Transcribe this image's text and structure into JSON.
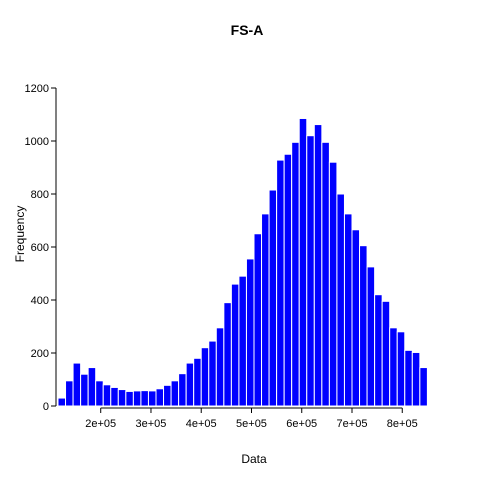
{
  "chart_data": {
    "type": "bar",
    "title": "FS-A",
    "xlabel": "Data",
    "ylabel": "Frequency",
    "xlim": [
      115000,
      895000
    ],
    "ylim": [
      0,
      1200
    ],
    "bin_width": 15000,
    "bin_start": 115000,
    "x_ticks": [
      {
        "value": 200000,
        "label": "2e+05"
      },
      {
        "value": 300000,
        "label": "3e+05"
      },
      {
        "value": 400000,
        "label": "4e+05"
      },
      {
        "value": 500000,
        "label": "5e+05"
      },
      {
        "value": 600000,
        "label": "6e+05"
      },
      {
        "value": 700000,
        "label": "7e+05"
      },
      {
        "value": 800000,
        "label": "8e+05"
      }
    ],
    "y_ticks": [
      {
        "value": 0,
        "label": "0"
      },
      {
        "value": 200,
        "label": "200"
      },
      {
        "value": 400,
        "label": "400"
      },
      {
        "value": 600,
        "label": "600"
      },
      {
        "value": 800,
        "label": "800"
      },
      {
        "value": 1000,
        "label": "1000"
      },
      {
        "value": 1200,
        "label": "1200"
      }
    ],
    "values": [
      30,
      95,
      162,
      120,
      145,
      95,
      80,
      70,
      62,
      55,
      57,
      58,
      57,
      65,
      78,
      95,
      122,
      162,
      180,
      220,
      245,
      295,
      390,
      460,
      490,
      555,
      650,
      725,
      815,
      928,
      950,
      995,
      1085,
      1020,
      1062,
      995,
      920,
      800,
      725,
      665,
      605,
      525,
      420,
      395,
      295,
      280,
      210,
      202,
      145
    ],
    "bar_color": "#0000ff"
  }
}
